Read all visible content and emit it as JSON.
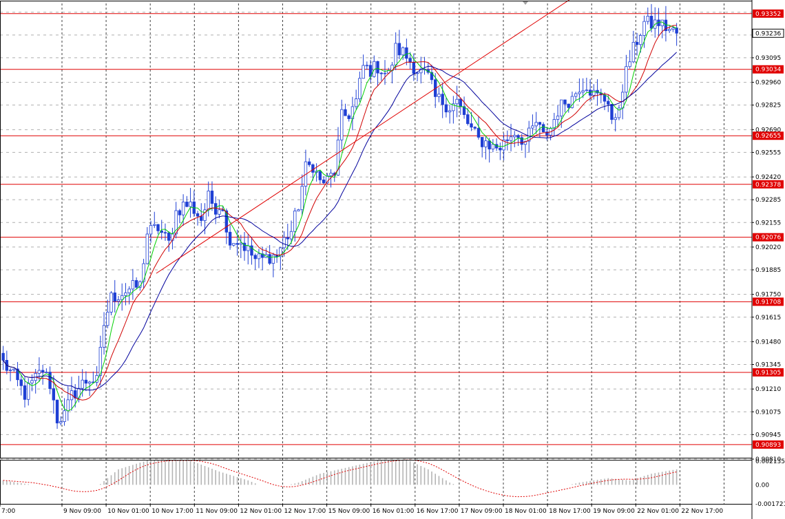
{
  "chart_data": [
    {
      "type": "candlestick",
      "title": "",
      "xlabel": "",
      "ylabel": "",
      "ylim": [
        0.9081,
        0.9341
      ],
      "yticks": [
        0.9336,
        0.9323,
        0.931,
        0.9296,
        0.9283,
        0.9269,
        0.9256,
        0.9242,
        0.9229,
        0.9216,
        0.9202,
        0.9189,
        0.9175,
        0.9162,
        0.9148,
        0.9135,
        0.9121,
        0.9108,
        0.9095,
        0.9081
      ],
      "ytick_labels": [
        "",
        "0.93236",
        "0.93095",
        "0.92960",
        "0.92825",
        "0.92690",
        "0.92555",
        "0.92420",
        "0.92285",
        "0.92155",
        "0.92020",
        "0.91885",
        "0.91750",
        "0.91615",
        "0.91480",
        "0.91345",
        "0.91210",
        "0.91075",
        "0.90945",
        "0.90810"
      ],
      "x_labels": [
        "7:00",
        "9 Nov 09:00",
        "10 Nov 01:00",
        "10 Nov 17:00",
        "11 Nov 09:00",
        "12 Nov 01:00",
        "12 Nov 17:00",
        "15 Nov 09:00",
        "16 Nov 01:00",
        "16 Nov 17:00",
        "17 Nov 09:00",
        "18 Nov 01:00",
        "18 Nov 17:00",
        "19 Nov 09:00",
        "22 Nov 01:00",
        "22 Nov 17:00"
      ],
      "current_price": "0.93236",
      "horizontal_levels": [
        {
          "value": 0.93352,
          "label": "0.93352"
        },
        {
          "value": 0.93034,
          "label": "0.93034"
        },
        {
          "value": 0.92655,
          "label": "0.92655"
        },
        {
          "value": 0.92378,
          "label": "0.92378"
        },
        {
          "value": 0.92076,
          "label": "0.92076"
        },
        {
          "value": 0.91708,
          "label": "0.91708"
        },
        {
          "value": 0.91305,
          "label": "0.91305"
        },
        {
          "value": 0.90893,
          "label": "0.90893"
        }
      ],
      "trendline": {
        "from": {
          "bar": 43,
          "price": 0.9187
        },
        "to": {
          "bar": 129,
          "price": 0.9304
        }
      },
      "price_path": [
        [
          0,
          0.9136
        ],
        [
          3,
          0.9128
        ],
        [
          6,
          0.9118
        ],
        [
          9,
          0.9127
        ],
        [
          11,
          0.9132
        ],
        [
          13,
          0.9124
        ],
        [
          15,
          0.9104
        ],
        [
          17,
          0.9106
        ],
        [
          19,
          0.9117
        ],
        [
          22,
          0.9124
        ],
        [
          24,
          0.9127
        ],
        [
          26,
          0.9125
        ],
        [
          28,
          0.9158
        ],
        [
          30,
          0.9173
        ],
        [
          33,
          0.9176
        ],
        [
          35,
          0.9178
        ],
        [
          38,
          0.918
        ],
        [
          40,
          0.921
        ],
        [
          43,
          0.9213
        ],
        [
          46,
          0.9204
        ],
        [
          48,
          0.9222
        ],
        [
          50,
          0.9226
        ],
        [
          52,
          0.9226
        ],
        [
          55,
          0.9218
        ],
        [
          57,
          0.923
        ],
        [
          59,
          0.9225
        ],
        [
          61,
          0.9226
        ],
        [
          62,
          0.9209
        ],
        [
          64,
          0.9206
        ],
        [
          66,
          0.9205
        ],
        [
          68,
          0.92
        ],
        [
          70,
          0.9195
        ],
        [
          72,
          0.9195
        ],
        [
          74,
          0.9197
        ],
        [
          76,
          0.9197
        ],
        [
          78,
          0.9206
        ],
        [
          80,
          0.9211
        ],
        [
          82,
          0.9226
        ],
        [
          84,
          0.9247
        ],
        [
          86,
          0.9249
        ],
        [
          88,
          0.9239
        ],
        [
          90,
          0.924
        ],
        [
          92,
          0.9245
        ],
        [
          94,
          0.9276
        ],
        [
          96,
          0.9278
        ],
        [
          98,
          0.9285
        ],
        [
          100,
          0.9305
        ],
        [
          102,
          0.9303
        ],
        [
          104,
          0.9305
        ],
        [
          107,
          0.93
        ],
        [
          109,
          0.9315
        ],
        [
          111,
          0.9313
        ],
        [
          113,
          0.9308
        ],
        [
          115,
          0.9303
        ],
        [
          118,
          0.9299
        ],
        [
          120,
          0.9287
        ],
        [
          122,
          0.9285
        ],
        [
          124,
          0.9282
        ],
        [
          126,
          0.9285
        ],
        [
          128,
          0.9276
        ],
        [
          130,
          0.9269
        ],
        [
          132,
          0.9263
        ],
        [
          134,
          0.9262
        ],
        [
          136,
          0.9259
        ],
        [
          138,
          0.9259
        ],
        [
          140,
          0.9264
        ],
        [
          142,
          0.9268
        ],
        [
          145,
          0.9262
        ],
        [
          148,
          0.9273
        ],
        [
          150,
          0.9265
        ],
        [
          152,
          0.927
        ],
        [
          154,
          0.928
        ],
        [
          156,
          0.9285
        ],
        [
          158,
          0.9287
        ],
        [
          160,
          0.9294
        ],
        [
          162,
          0.9295
        ],
        [
          164,
          0.9289
        ],
        [
          166,
          0.9287
        ],
        [
          168,
          0.9286
        ],
        [
          169,
          0.9275
        ],
        [
          170,
          0.9272
        ],
        [
          172,
          0.9294
        ],
        [
          174,
          0.9309
        ],
        [
          176,
          0.932
        ],
        [
          178,
          0.933
        ],
        [
          180,
          0.9329
        ],
        [
          182,
          0.933
        ],
        [
          185,
          0.9326
        ],
        [
          187,
          0.9324
        ]
      ],
      "moving_averages": [
        {
          "color": "#00d000",
          "period": 5
        },
        {
          "color": "#d00000",
          "period": 10
        },
        {
          "color": "#00009c",
          "period": 20
        }
      ],
      "colors": {
        "candle": "#1e3fd4",
        "level": "#e00000",
        "trendline": "#e00000",
        "grid": "#000000",
        "label_text": "#ffffff",
        "current_bg": "#ffffff"
      }
    },
    {
      "type": "histogram",
      "title": "",
      "ylim": [
        -0.001721,
        0.002135
      ],
      "ytick_labels": [
        "0.002135",
        "0.00",
        "-0.001721"
      ],
      "histogram_path": [
        [
          0,
          0.0004
        ],
        [
          10,
          -0.0001
        ],
        [
          18,
          -0.0008
        ],
        [
          26,
          -0.0002
        ],
        [
          32,
          0.0014
        ],
        [
          40,
          0.0022
        ],
        [
          52,
          0.0022
        ],
        [
          60,
          0.0012
        ],
        [
          68,
          0.0004
        ],
        [
          74,
          -0.0004
        ],
        [
          82,
          0.0002
        ],
        [
          88,
          0.001
        ],
        [
          96,
          0.0016
        ],
        [
          104,
          0.0022
        ],
        [
          112,
          0.0023
        ],
        [
          118,
          0.0014
        ],
        [
          124,
          0.0002
        ],
        [
          132,
          -0.0008
        ],
        [
          140,
          -0.0012
        ],
        [
          146,
          -0.0008
        ],
        [
          152,
          -0.0004
        ],
        [
          160,
          0.0002
        ],
        [
          168,
          0.0006
        ],
        [
          174,
          0.0004
        ],
        [
          180,
          0.001
        ],
        [
          187,
          0.0014
        ]
      ],
      "colors": {
        "bar": "#b4b4b4",
        "signal": "#e00000"
      }
    }
  ]
}
